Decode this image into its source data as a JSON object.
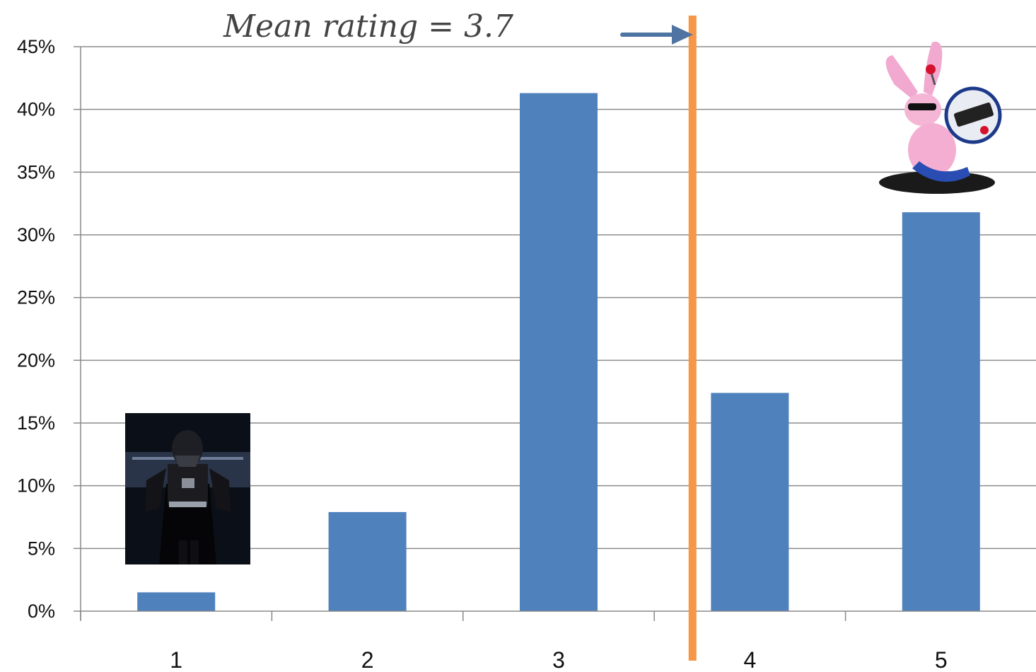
{
  "chart_data": {
    "type": "bar",
    "categories": [
      "1",
      "2",
      "3",
      "4",
      "5"
    ],
    "values": [
      1.5,
      7.9,
      41.3,
      17.4,
      31.8
    ],
    "ylim": [
      0,
      45
    ],
    "yticks": [
      0,
      5,
      10,
      15,
      20,
      25,
      30,
      35,
      40,
      45
    ],
    "ytick_suffix": "%",
    "grid": true,
    "bar_color": "#4F81BD",
    "mean_line": {
      "x": 3.7,
      "color": "#F79646"
    },
    "annotation": {
      "text": "Mean rating = 3.7",
      "arrow_color": "#4F74A3"
    },
    "images": [
      {
        "category": "1",
        "icon": "darth-vader-picture"
      },
      {
        "category": "5",
        "icon": "energizer-bunny-picture"
      }
    ]
  }
}
